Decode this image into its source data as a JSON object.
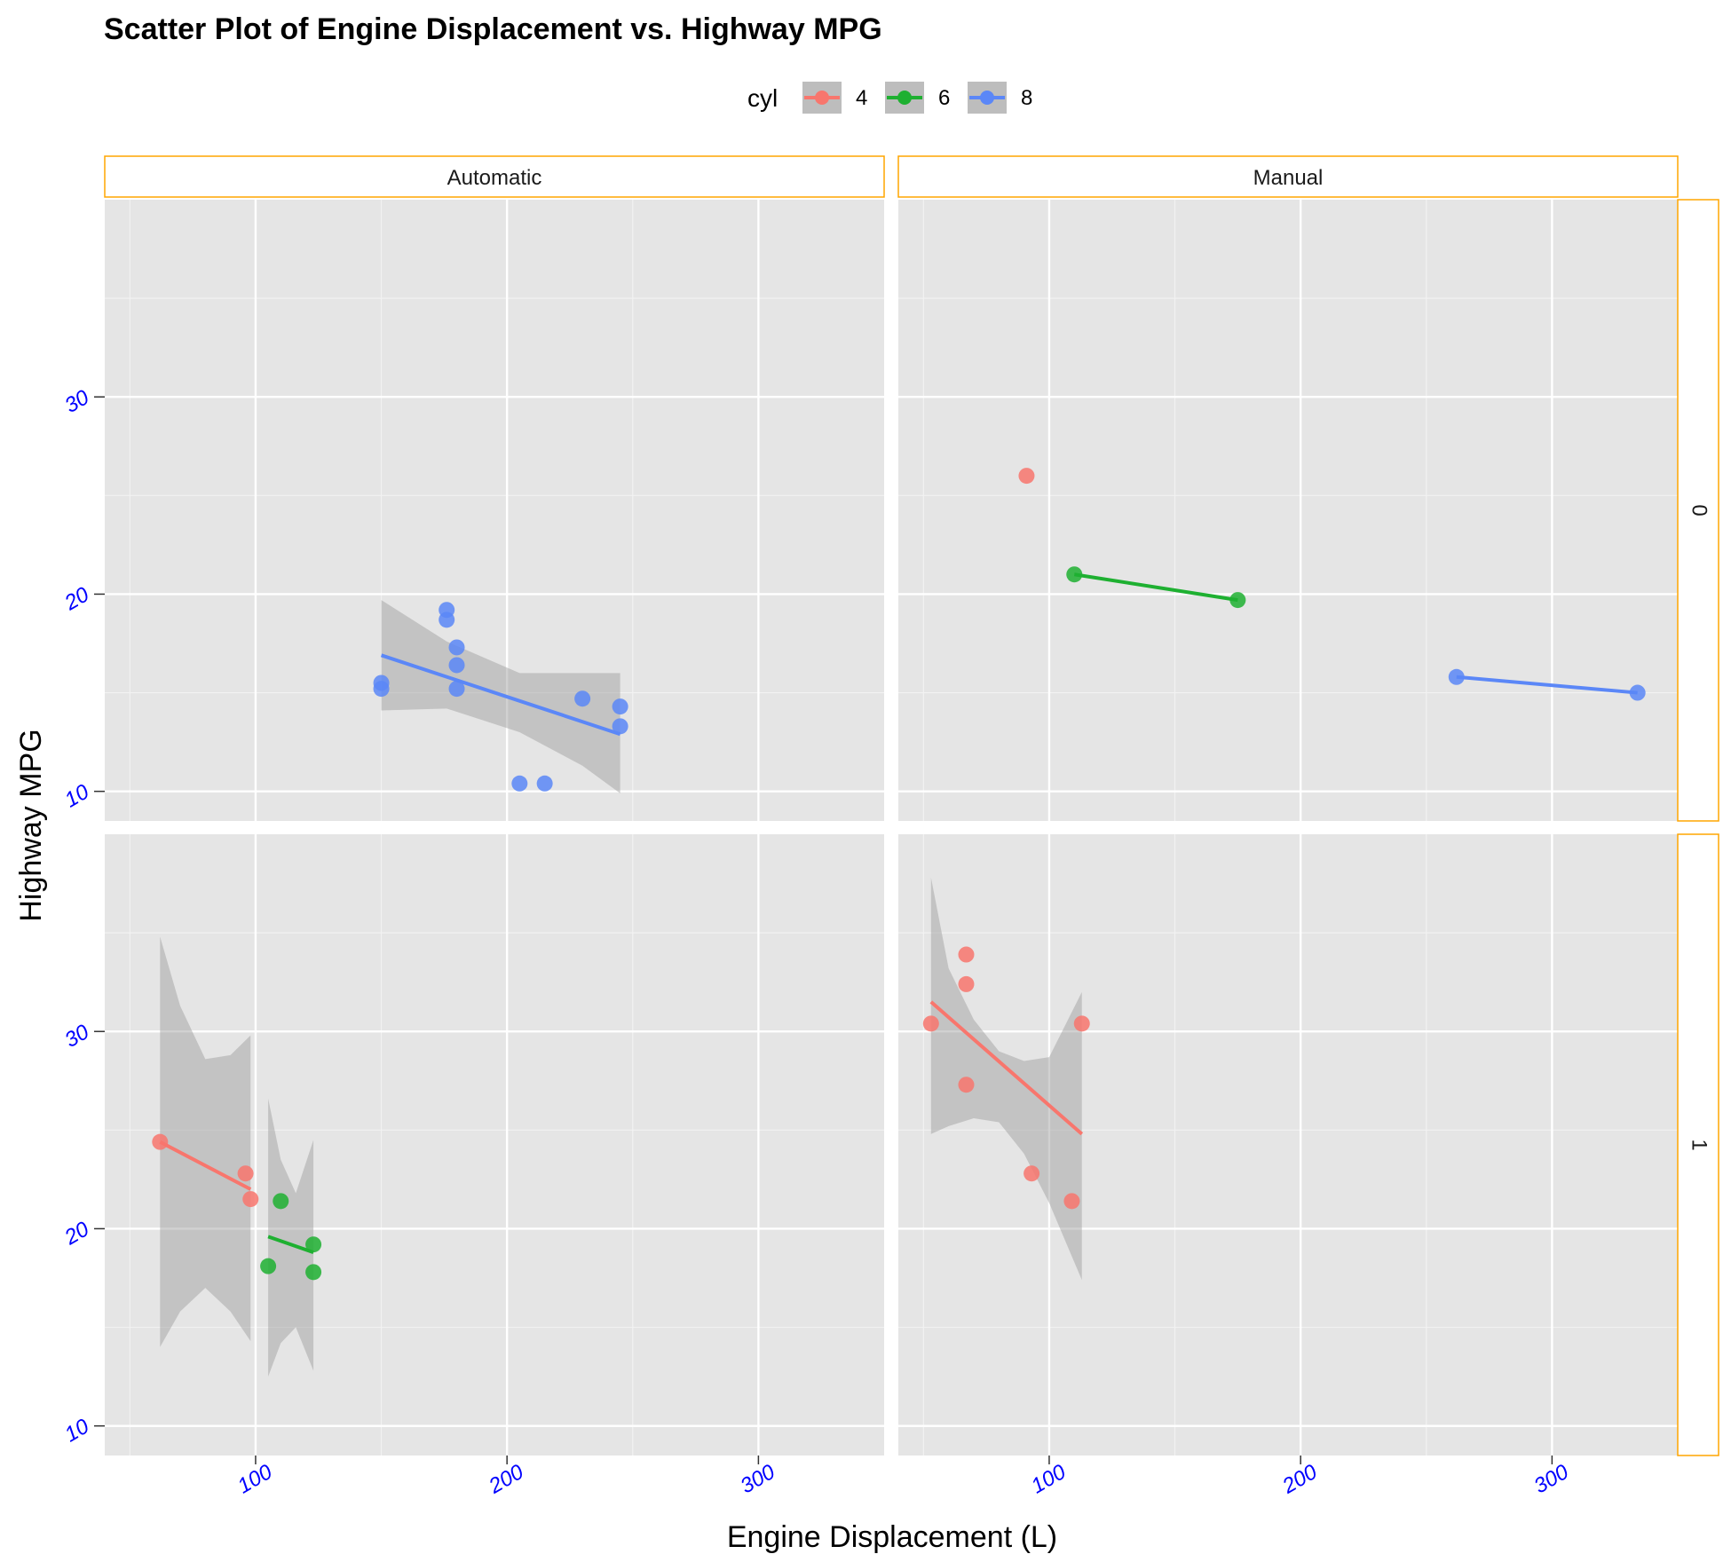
{
  "chart_data": {
    "type": "scatter",
    "title": "Scatter Plot of Engine Displacement vs. Highway MPG",
    "xlabel": "Engine Displacement (L)",
    "ylabel": "Highway MPG",
    "xlim": [
      40,
      350
    ],
    "ylim": [
      8.5,
      40
    ],
    "x_ticks": [
      100,
      200,
      300
    ],
    "y_ticks": [
      10,
      20,
      30
    ],
    "tick_color": "#0000ff",
    "strip_border_color": "#ffa500",
    "panel_background": "#e5e5e5",
    "facet_columns": [
      "Automatic",
      "Manual"
    ],
    "facet_rows": [
      "0",
      "1"
    ],
    "legend": {
      "title": "cyl",
      "position": "top",
      "items": [
        {
          "label": "4",
          "color": "#f8766d"
        },
        {
          "label": "6",
          "color": "#1eb031"
        },
        {
          "label": "8",
          "color": "#5b87f7"
        }
      ]
    },
    "panels": [
      {
        "column": "Automatic",
        "row": "0",
        "series": [
          {
            "cyl": "8",
            "points": [
              [
                150,
                15.2
              ],
              [
                150,
                15.5
              ],
              [
                176,
                18.7
              ],
              [
                176,
                19.2
              ],
              [
                180,
                15.2
              ],
              [
                180,
                16.4
              ],
              [
                180,
                17.3
              ],
              [
                205,
                10.4
              ],
              [
                215,
                10.4
              ],
              [
                230,
                14.7
              ],
              [
                245,
                13.3
              ],
              [
                245,
                14.3
              ]
            ],
            "fit": {
              "x": [
                150,
                245
              ],
              "y": [
                16.9,
                12.9
              ]
            },
            "band": {
              "x": [
                150,
                176,
                205,
                230,
                245
              ],
              "lower": [
                14.1,
                14.2,
                13.0,
                11.3,
                9.9
              ],
              "upper": [
                19.7,
                17.6,
                16.0,
                16.0,
                16.0
              ]
            }
          }
        ]
      },
      {
        "column": "Manual",
        "row": "0",
        "series": [
          {
            "cyl": "4",
            "points": [
              [
                91,
                26.0
              ]
            ]
          },
          {
            "cyl": "6",
            "points": [
              [
                110,
                21.0
              ],
              [
                175,
                19.7
              ]
            ],
            "fit": {
              "x": [
                110,
                175
              ],
              "y": [
                21.0,
                19.7
              ]
            }
          },
          {
            "cyl": "8",
            "points": [
              [
                262,
                15.8
              ],
              [
                334,
                15.0
              ]
            ],
            "fit": {
              "x": [
                262,
                334
              ],
              "y": [
                15.8,
                15.0
              ]
            }
          }
        ]
      },
      {
        "column": "Automatic",
        "row": "1",
        "series": [
          {
            "cyl": "4",
            "points": [
              [
                62,
                24.4
              ],
              [
                96,
                22.8
              ],
              [
                98,
                21.5
              ]
            ],
            "fit": {
              "x": [
                62,
                98
              ],
              "y": [
                24.4,
                22.0
              ]
            },
            "band": {
              "x": [
                62,
                70,
                80,
                90,
                98
              ],
              "lower": [
                14.0,
                15.8,
                17.0,
                15.8,
                14.3
              ],
              "upper": [
                34.8,
                31.3,
                28.6,
                28.8,
                29.8
              ]
            }
          },
          {
            "cyl": "6",
            "points": [
              [
                105,
                18.1
              ],
              [
                110,
                21.4
              ],
              [
                123,
                19.2
              ],
              [
                123,
                17.8
              ]
            ],
            "fit": {
              "x": [
                105,
                123
              ],
              "y": [
                19.6,
                18.8
              ]
            },
            "band": {
              "x": [
                105,
                110,
                116,
                123
              ],
              "lower": [
                12.5,
                14.2,
                15.0,
                12.8
              ],
              "upper": [
                26.6,
                23.5,
                21.8,
                24.5
              ]
            }
          }
        ]
      },
      {
        "column": "Manual",
        "row": "1",
        "series": [
          {
            "cyl": "4",
            "points": [
              [
                53,
                30.4
              ],
              [
                67,
                33.9
              ],
              [
                67,
                32.4
              ],
              [
                67,
                27.3
              ],
              [
                93,
                22.8
              ],
              [
                109,
                21.4
              ],
              [
                113,
                30.4
              ]
            ],
            "fit": {
              "x": [
                53,
                113
              ],
              "y": [
                31.5,
                24.8
              ]
            },
            "band": {
              "x": [
                53,
                60,
                70,
                80,
                90,
                100,
                113
              ],
              "lower": [
                24.8,
                25.2,
                25.6,
                25.4,
                23.8,
                21.3,
                17.4
              ],
              "upper": [
                37.8,
                33.2,
                30.6,
                29.0,
                28.5,
                28.7,
                32.0
              ]
            }
          }
        ]
      }
    ]
  }
}
